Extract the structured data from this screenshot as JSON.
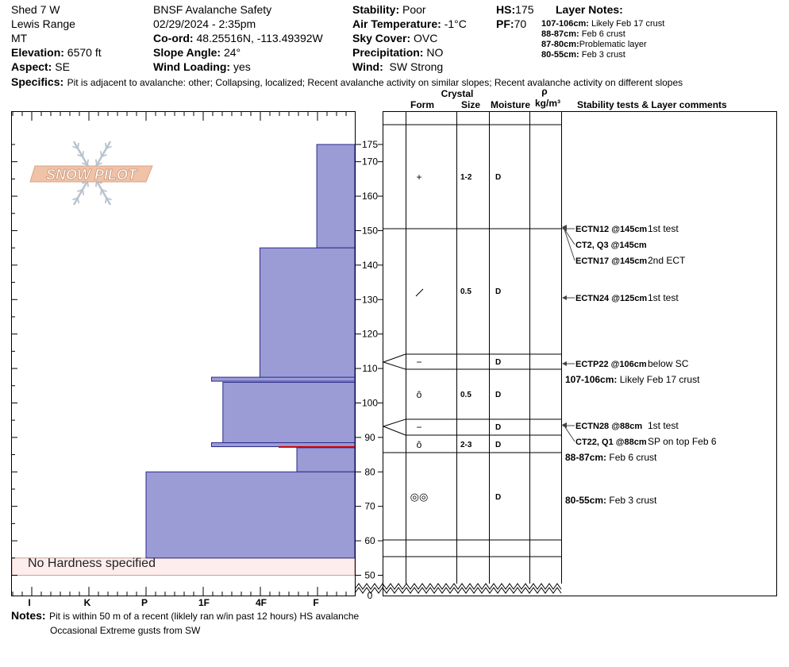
{
  "header": {
    "location": "Shed 7 W",
    "range": "Lewis Range",
    "state": "MT",
    "elevation_label": "Elevation:",
    "elevation": "6570 ft",
    "aspect_label": "Aspect:",
    "aspect": "SE",
    "organization": "BNSF Avalanche Safety",
    "datetime": "02/29/2024 - 2:35pm",
    "coord_label": "Co-ord:",
    "coord": "48.25516N, -113.49392W",
    "slope_label": "Slope Angle:",
    "slope": "24°",
    "wind_loading_label": "Wind Loading:",
    "wind_loading": "yes",
    "stability_label": "Stability:",
    "stability": "Poor",
    "air_temp_label": "Air Temperature:",
    "air_temp": "-1°C",
    "sky_label": "Sky Cover:",
    "sky": "OVC",
    "precip_label": "Precipitation:",
    "precip": "NO",
    "wind_label": "Wind:",
    "wind": "SW Strong",
    "hs_label": "HS:",
    "hs": "175",
    "pf_label": "PF:",
    "pf": "70"
  },
  "layer_notes": {
    "title": "Layer Notes:",
    "items": [
      {
        "range": "107-106cm:",
        "text": "Likely Feb 17 crust"
      },
      {
        "range": "88-87cm:",
        "text": "Feb 6 crust"
      },
      {
        "range": "87-80cm:",
        "text": "Problematic layer"
      },
      {
        "range": "80-55cm:",
        "text": "Feb 3 crust"
      }
    ]
  },
  "specifics": {
    "label": "Specifics:",
    "text": "Pit is adjacent to avalanche: other; Collapsing, localized; Recent avalanche activity on similar slopes; Recent avalanche activity on different slopes"
  },
  "notes": {
    "label": "Notes:",
    "line1": "Pit is within 50 m of a recent (liklely ran w/in past 12 hours) HS avalanche",
    "line2": "Occasional Extreme gusts from SW"
  },
  "logo": {
    "text": "SNOW PILOT"
  },
  "chart_data": {
    "type": "snow-profile",
    "y_axis": {
      "ticks": [
        0,
        50,
        60,
        70,
        80,
        90,
        100,
        110,
        120,
        130,
        140,
        150,
        160,
        170,
        175
      ]
    },
    "hardness_axis": {
      "ticks": [
        "I",
        "K",
        "P",
        "1F",
        "4F",
        "F"
      ]
    },
    "hardness_index": {
      "F": 1,
      "4F": 2,
      "1F": 3,
      "P": 4,
      "K": 5,
      "I": 6
    },
    "layers": [
      {
        "top": 175,
        "bottom": 145,
        "hardness": "F",
        "grain": "+",
        "size": "1-2",
        "moisture": "D"
      },
      {
        "top": 145,
        "bottom": 107,
        "hardness": "4F",
        "grain": "/",
        "size": "0.5",
        "moisture": "D"
      },
      {
        "top": 107,
        "bottom": 106,
        "hardness": "1F-",
        "grain": "−",
        "size": "",
        "moisture": "D"
      },
      {
        "top": 106,
        "bottom": 88,
        "hardness": "1F+",
        "grain": "ȏ",
        "size": "0.5",
        "moisture": "D"
      },
      {
        "top": 88,
        "bottom": 87,
        "hardness": "1F-",
        "grain": "−",
        "size": "",
        "moisture": "D"
      },
      {
        "top": 87,
        "bottom": 80,
        "hardness": "F+",
        "grain": "ȏ",
        "size": "2-3",
        "moisture": "D"
      },
      {
        "top": 80,
        "bottom": 55,
        "hardness": "P",
        "grain": "◎◎",
        "size": "",
        "moisture": "D"
      }
    ],
    "hardness_value_map": {
      "F": 1,
      "F+": 1.35,
      "4F": 2,
      "1F-": 2.85,
      "1F+": 2.65,
      "P": 4
    },
    "no_hardness_band": {
      "top": 55,
      "bottom": 50,
      "label": "No Hardness specified"
    },
    "column_headers": {
      "crystal": "Crystal",
      "form": "Form",
      "size": "Size",
      "moisture": "Moisture",
      "rho": "ρ",
      "density": "kg/m³",
      "comments": "Stability tests & Layer comments"
    },
    "tests": [
      {
        "code": "ECTN12 @145cm",
        "comment": "1st test",
        "depth": 145
      },
      {
        "code": "CT2, Q3 @145cm",
        "comment": "",
        "depth": 145
      },
      {
        "code": "ECTN17 @145cm",
        "comment": "2nd ECT",
        "depth": 145
      },
      {
        "code": "ECTN24 @125cm",
        "comment": "1st test",
        "depth": 125
      },
      {
        "code": "ECTP22 @106cm",
        "comment": "below SC",
        "depth": 106
      },
      {
        "code": "ECTN28 @88cm",
        "comment": "1st test",
        "depth": 88
      },
      {
        "code": "CT22, Q1 @88cm",
        "comment": "SP on top Feb 6",
        "depth": 88
      }
    ],
    "layer_comments": [
      {
        "range": "107-106cm:",
        "text": "Likely Feb 17 crust"
      },
      {
        "range": "88-87cm:",
        "text": "Feb 6 crust"
      },
      {
        "range": "80-55cm:",
        "text": "Feb 3 crust"
      }
    ]
  }
}
